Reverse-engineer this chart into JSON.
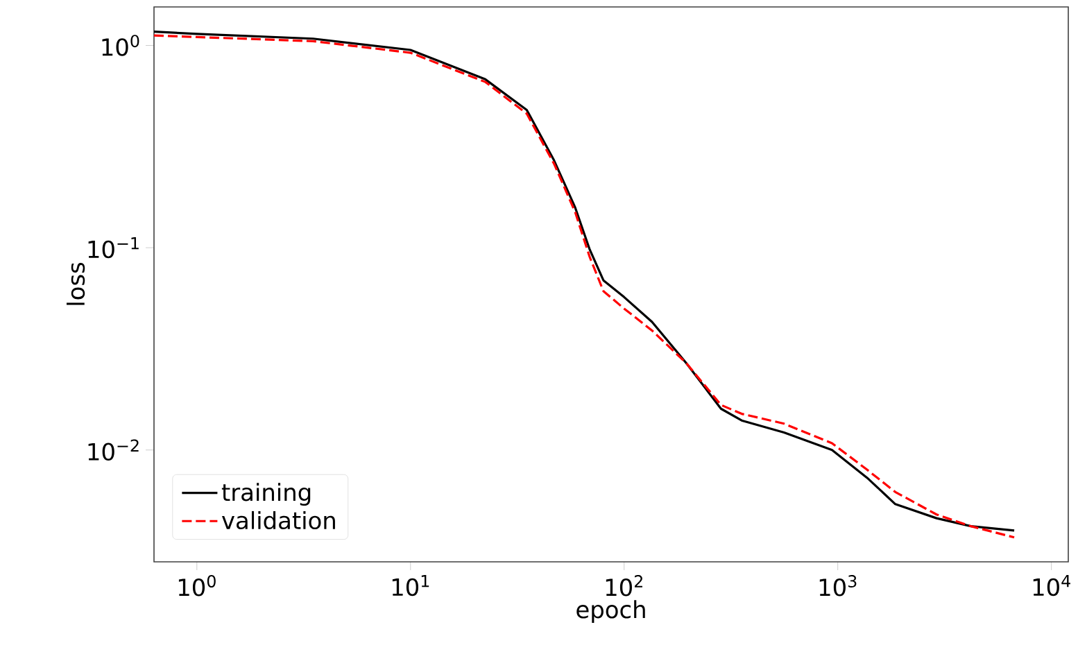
{
  "chart_data": {
    "type": "line",
    "xlabel": "epoch",
    "ylabel": "loss",
    "log": "xy",
    "grid": false,
    "legend": "bottom left",
    "xlim": [
      0.63,
      12000
    ],
    "ylim": [
      0.0028,
      1.55
    ],
    "xticks": [
      {
        "value": 1,
        "label": "10$^{0}$"
      },
      {
        "value": 10,
        "label": "10$^{1}$"
      },
      {
        "value": 100,
        "label": "10$^{2}$"
      },
      {
        "value": 1000,
        "label": "10$^{3}$"
      },
      {
        "value": 10000,
        "label": "10$^{4}$"
      }
    ],
    "yticks": [
      {
        "value": 0.01,
        "label": "10$^{−2}$"
      },
      {
        "value": 0.1,
        "label": "10$^{−1}$"
      },
      {
        "value": 1,
        "label": "10$^{0}$"
      }
    ],
    "series": [
      {
        "name": "training",
        "color": "#000000",
        "line_style": "solid",
        "x": [
          0.63,
          1,
          3.5,
          10,
          22.4,
          35,
          47,
          59,
          69,
          80,
          100,
          135,
          196,
          284,
          355,
          560,
          940,
          1370,
          1860,
          2900,
          4200,
          6700
        ],
        "values": [
          1.17,
          1.14,
          1.08,
          0.95,
          0.68,
          0.48,
          0.27,
          0.158,
          0.098,
          0.069,
          0.057,
          0.043,
          0.0268,
          0.016,
          0.014,
          0.0122,
          0.01,
          0.0073,
          0.0054,
          0.0046,
          0.0042,
          0.004
        ]
      },
      {
        "name": "validation",
        "color": "#ff0000",
        "line_style": "dashed",
        "x": [
          0.63,
          1,
          3.5,
          10,
          22.4,
          35,
          47,
          59,
          69,
          80,
          100,
          135,
          196,
          284,
          355,
          560,
          940,
          1370,
          1860,
          2900,
          4200,
          6700
        ],
        "values": [
          1.12,
          1.1,
          1.05,
          0.92,
          0.66,
          0.46,
          0.26,
          0.15,
          0.09,
          0.061,
          0.05,
          0.039,
          0.0268,
          0.0167,
          0.0151,
          0.0135,
          0.0108,
          0.008,
          0.0062,
          0.0048,
          0.0042,
          0.0037
        ]
      }
    ]
  }
}
